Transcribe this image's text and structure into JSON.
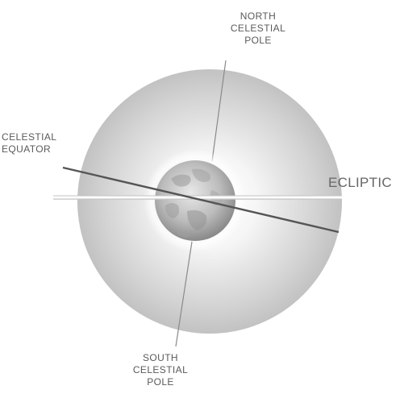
{
  "labels": {
    "north_pole": [
      "NORTH",
      "CELESTIAL",
      "POLE"
    ],
    "celestial_equator": [
      "CELESTIAL",
      "EQUATOR"
    ],
    "south_pole": [
      "SOUTH",
      "CELESTIAL",
      "POLE"
    ],
    "ecliptic": "ECLIPTIC"
  },
  "colors": {
    "sphere_center": "#ffffff",
    "sphere_edge": "#bdbdbd",
    "earth_light": "#e4e4e4",
    "earth_dark": "#8c8c8c",
    "line": "#555555",
    "label": "#5a5a5a"
  }
}
